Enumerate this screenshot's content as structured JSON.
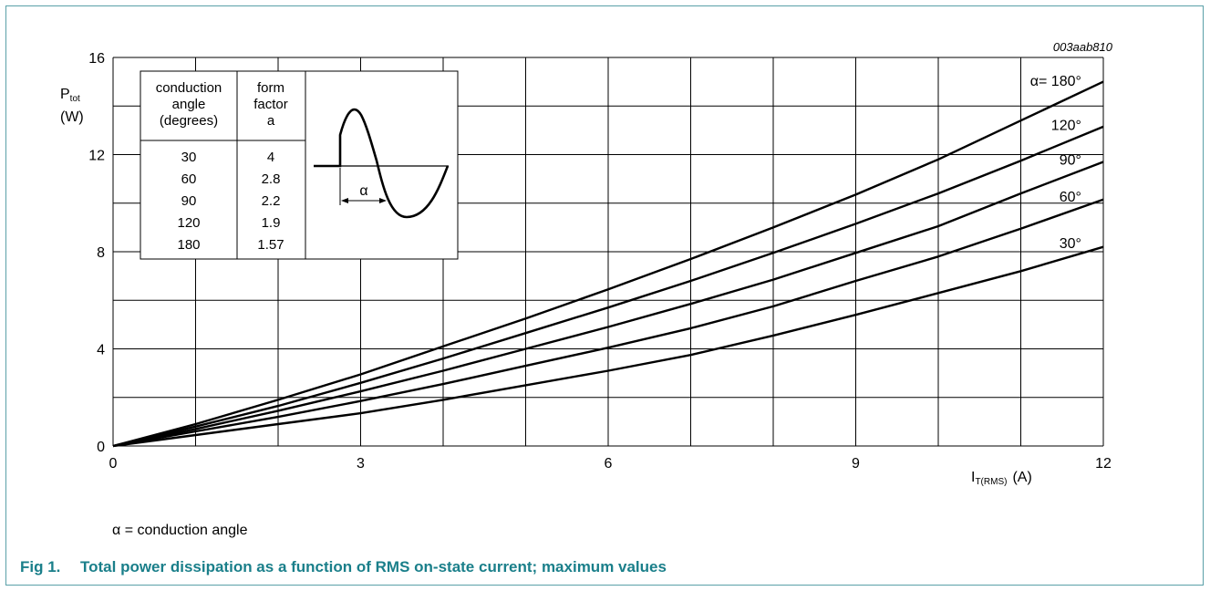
{
  "figure_id": "003aab810",
  "note": {
    "symbol": "α",
    "text": " = conduction angle"
  },
  "caption": {
    "number": "Fig 1.",
    "title": "Total power dissipation as a function of RMS on-state current; maximum values"
  },
  "inset": {
    "headers": [
      "conduction angle (degrees)",
      "form factor a"
    ],
    "rows": [
      [
        "30",
        "4"
      ],
      [
        "60",
        "2.8"
      ],
      [
        "90",
        "2.2"
      ],
      [
        "120",
        "1.9"
      ],
      [
        "180",
        "1.57"
      ]
    ],
    "diagram_label": "α"
  },
  "colors": {
    "caption": "#1a7f8a",
    "frame": "#5aa0a8",
    "curves": "#000000"
  },
  "chart_data": {
    "type": "line",
    "ylabel_main": "P",
    "ylabel_sub": "tot",
    "ylabel_unit": "(W)",
    "xlabel_main": "I",
    "xlabel_sub": "T(RMS)",
    "xlabel_unit": "(A)",
    "xlim": [
      0,
      12
    ],
    "ylim": [
      0,
      16
    ],
    "x_ticks": [
      0,
      3,
      6,
      9,
      12
    ],
    "y_ticks": [
      0,
      4,
      8,
      12,
      16
    ],
    "grid": true,
    "series": [
      {
        "name": "α = 180°",
        "label": "α= 180°",
        "x": [
          0,
          1,
          2,
          3,
          4,
          5,
          6,
          7,
          8,
          9,
          10,
          11,
          12
        ],
        "y": [
          0,
          0.9,
          1.9,
          2.95,
          4.1,
          5.25,
          6.45,
          7.7,
          9.0,
          10.35,
          11.8,
          13.4,
          15.0
        ]
      },
      {
        "name": "120°",
        "label": "120°",
        "x": [
          0,
          1,
          2,
          3,
          4,
          5,
          6,
          7,
          8,
          9,
          10,
          11,
          12
        ],
        "y": [
          0,
          0.8,
          1.65,
          2.6,
          3.6,
          4.65,
          5.7,
          6.8,
          7.95,
          9.15,
          10.4,
          11.75,
          13.15
        ]
      },
      {
        "name": "90°",
        "label": "90°",
        "x": [
          0,
          1,
          2,
          3,
          4,
          5,
          6,
          7,
          8,
          9,
          10,
          11,
          12
        ],
        "y": [
          0,
          0.7,
          1.45,
          2.25,
          3.1,
          4.0,
          4.9,
          5.85,
          6.85,
          7.95,
          9.05,
          10.4,
          11.7
        ]
      },
      {
        "name": "60°",
        "label": "60°",
        "x": [
          0,
          1,
          2,
          3,
          4,
          5,
          6,
          7,
          8,
          9,
          10,
          11,
          12
        ],
        "y": [
          0,
          0.6,
          1.2,
          1.85,
          2.55,
          3.3,
          4.05,
          4.85,
          5.75,
          6.8,
          7.8,
          8.95,
          10.15
        ]
      },
      {
        "name": "30°",
        "label": "30°",
        "x": [
          0,
          1,
          2,
          3,
          4,
          5,
          6,
          7,
          8,
          9,
          10,
          11,
          12
        ],
        "y": [
          0,
          0.45,
          0.9,
          1.35,
          1.9,
          2.5,
          3.1,
          3.75,
          4.55,
          5.4,
          6.3,
          7.2,
          8.2
        ]
      }
    ]
  }
}
